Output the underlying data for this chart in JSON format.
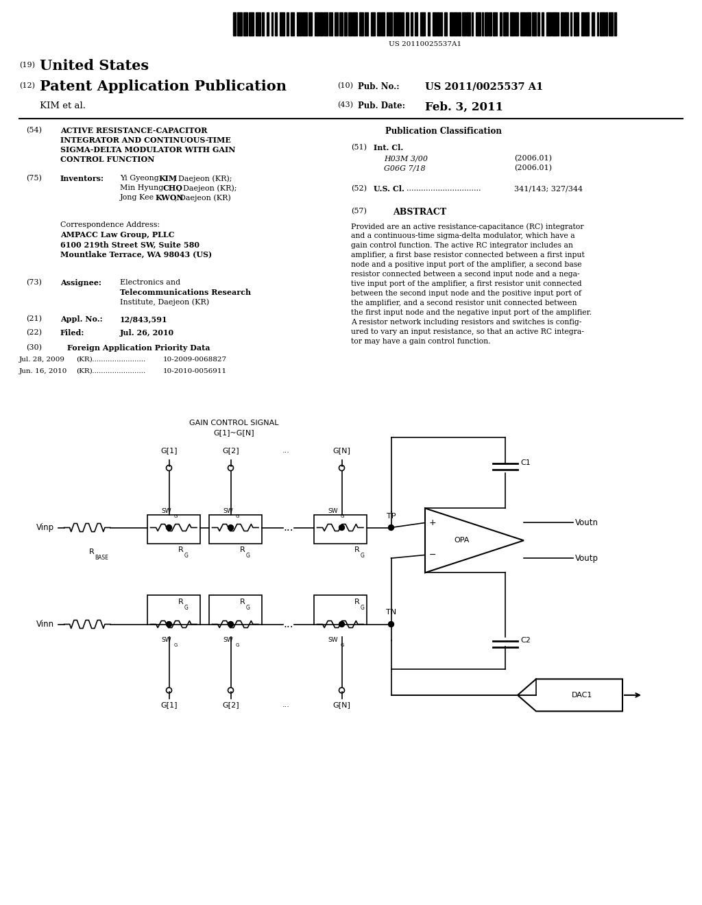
{
  "background_color": "#ffffff",
  "page_width": 10.24,
  "page_height": 13.2,
  "barcode_text": "US 20110025537A1",
  "title_19": "(19)",
  "title_us": "United States",
  "title_12": "(12)",
  "title_pub": "Patent Application Publication",
  "title_kim": "KIM et al.",
  "pub_no_label": "(10)  Pub. No.:",
  "pub_no_val": "US 2011/0025537 A1",
  "pub_date_label": "(43)  Pub. Date:",
  "pub_date_val": "Feb. 3, 2011",
  "field54_label": "(54)",
  "field54_lines": [
    "ACTIVE RESISTANCE-CAPACITOR",
    "INTEGRATOR AND CONTINUOUS-TIME",
    "SIGMA-DELTA MODULATOR WITH GAIN",
    "CONTROL FUNCTION"
  ],
  "field75_label": "(75)",
  "field75_title": "Inventors:",
  "field75_lines": [
    "Yi Gyeong KIM, Daejeon (KR);",
    "Min Hyung CHO, Daejeon (KR);",
    "Jong Kee KWON, Daejeon (KR)"
  ],
  "field75_bold": [
    "KIM",
    "CHO",
    "KWON"
  ],
  "corr_label": "Correspondence Address:",
  "corr_lines": [
    "AMPACC Law Group, PLLC",
    "6100 219th Street SW, Suite 580",
    "Mountlake Terrace, WA 98043 (US)"
  ],
  "field73_label": "(73)",
  "field73_title": "Assignee:",
  "field73_lines": [
    "Electronics and",
    "Telecommunications Research",
    "Institute, Daejeon (KR)"
  ],
  "field21_label": "(21)",
  "field21_title": "Appl. No.:",
  "field21_val": "12/843,591",
  "field22_label": "(22)",
  "field22_title": "Filed:",
  "field22_val": "Jul. 26, 2010",
  "field30_label": "(30)",
  "field30_title": "Foreign Application Priority Data",
  "field30_line1a": "Jul. 28, 2009",
  "field30_line1b": "(KR)  ........................",
  "field30_line1c": "10-2009-0068827",
  "field30_line2a": "Jun. 16, 2010",
  "field30_line2b": "(KR)  ........................",
  "field30_line2c": "10-2010-0056911",
  "pub_class_title": "Publication Classification",
  "field51_label": "(51)",
  "field51_title": "Int. Cl.",
  "field51_class1": "H03M 3/00",
  "field51_year1": "(2006.01)",
  "field51_class2": "G06G 7/18",
  "field51_year2": "(2006.01)",
  "field52_label": "(52)",
  "field52_title": "U.S. Cl.",
  "field52_dots": "...............................",
  "field52_val": "341/143; 327/344",
  "field57_label": "(57)",
  "field57_title": "ABSTRACT",
  "abstract_lines": [
    "Provided are an active resistance-capacitance (RC) integrator",
    "and a continuous-time sigma-delta modulator, which have a",
    "gain control function. The active RC integrator includes an",
    "amplifier, a first base resistor connected between a first input",
    "node and a positive input port of the amplifier, a second base",
    "resistor connected between a second input node and a nega-",
    "tive input port of the amplifier, a first resistor unit connected",
    "between the second input node and the positive input port of",
    "the amplifier, and a second resistor unit connected between",
    "the first input node and the negative input port of the amplifier.",
    "A resistor network including resistors and switches is config-",
    "ured to vary an input resistance, so that an active RC integra-",
    "tor may have a gain control function."
  ]
}
